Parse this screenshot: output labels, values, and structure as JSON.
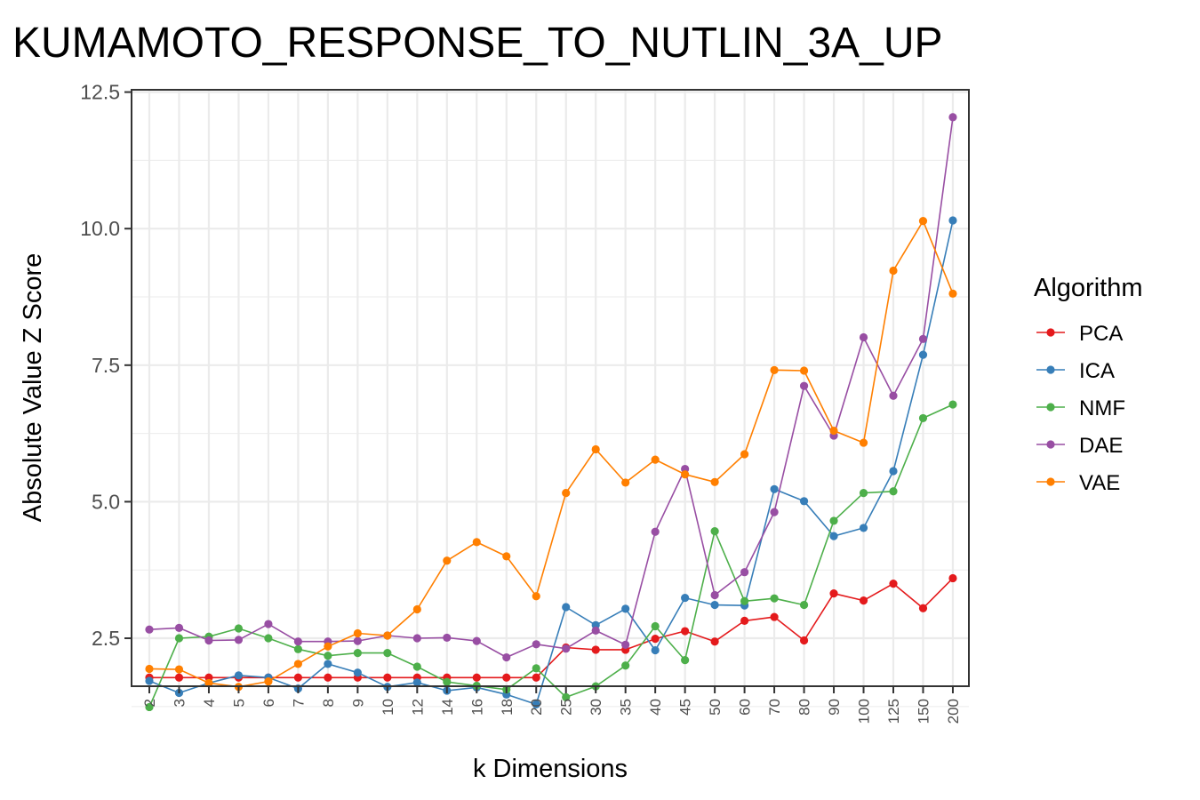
{
  "colors": {
    "PCA": "#e41a1c",
    "ICA": "#377eb8",
    "NMF": "#4daf4a",
    "DAE": "#984ea3",
    "VAE": "#ff7f00",
    "grid": "#ebebeb",
    "panel_border": "#333333"
  },
  "chart_data": {
    "type": "line",
    "title": "KUMAMOTO_RESPONSE_TO_NUTLIN_3A_UP",
    "xlabel": "k Dimensions",
    "ylabel": "Absolute Value Z Score",
    "categories": [
      "2",
      "3",
      "4",
      "5",
      "6",
      "7",
      "8",
      "9",
      "10",
      "12",
      "14",
      "16",
      "18",
      "20",
      "25",
      "30",
      "35",
      "40",
      "45",
      "50",
      "60",
      "70",
      "80",
      "90",
      "100",
      "125",
      "150",
      "200"
    ],
    "y_ticks": [
      "2.5",
      "5.0",
      "7.5",
      "10.0",
      "12.5"
    ],
    "ylim": [
      1.0,
      12.5
    ],
    "grid": true,
    "legend": {
      "title": "Algorithm",
      "placement": "right"
    },
    "series": [
      {
        "name": "PCA",
        "values": [
          1.78,
          1.78,
          1.78,
          1.78,
          1.78,
          1.78,
          1.78,
          1.78,
          1.78,
          1.78,
          1.78,
          1.78,
          1.78,
          1.78,
          2.33,
          2.29,
          2.29,
          2.49,
          2.63,
          2.44,
          2.82,
          2.89,
          2.46,
          3.32,
          3.19,
          3.5,
          3.05,
          3.6
        ]
      },
      {
        "name": "ICA",
        "values": [
          1.72,
          1.5,
          1.68,
          1.82,
          1.78,
          1.58,
          2.03,
          1.87,
          1.61,
          1.69,
          1.54,
          1.6,
          1.47,
          1.29,
          3.07,
          2.74,
          3.04,
          2.28,
          3.24,
          3.11,
          3.1,
          5.23,
          5.01,
          4.37,
          4.52,
          5.56,
          7.69,
          10.15
        ]
      },
      {
        "name": "NMF",
        "values": [
          1.24,
          2.5,
          2.53,
          2.68,
          2.5,
          2.3,
          2.18,
          2.23,
          2.23,
          1.98,
          1.7,
          1.63,
          1.56,
          1.95,
          1.42,
          1.62,
          2.0,
          2.72,
          2.1,
          4.46,
          3.18,
          3.23,
          3.11,
          4.65,
          5.16,
          5.19,
          6.53,
          6.78
        ]
      },
      {
        "name": "DAE",
        "values": [
          2.66,
          2.69,
          2.46,
          2.47,
          2.76,
          2.44,
          2.44,
          2.45,
          2.55,
          2.5,
          2.51,
          2.45,
          2.15,
          2.39,
          2.31,
          2.64,
          2.38,
          4.45,
          5.6,
          3.29,
          3.71,
          4.81,
          7.12,
          6.21,
          8.01,
          6.94,
          7.98,
          12.04
        ]
      },
      {
        "name": "VAE",
        "values": [
          1.94,
          1.93,
          1.68,
          1.61,
          1.71,
          2.03,
          2.35,
          2.59,
          2.55,
          3.03,
          3.92,
          4.26,
          4.0,
          3.27,
          5.16,
          5.96,
          5.35,
          5.77,
          5.5,
          5.36,
          5.87,
          7.41,
          7.4,
          6.3,
          6.08,
          9.23,
          10.14,
          8.81
        ]
      }
    ]
  }
}
